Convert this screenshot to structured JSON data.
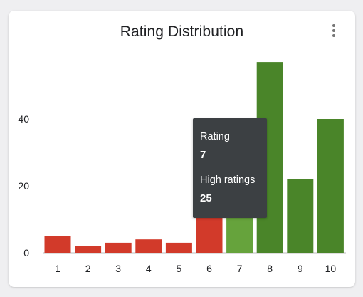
{
  "chart_data": {
    "type": "bar",
    "title": "Rating Distribution",
    "categories": [
      "1",
      "2",
      "3",
      "4",
      "5",
      "6",
      "7",
      "8",
      "9",
      "10"
    ],
    "values": [
      5,
      2,
      3,
      4,
      3,
      12,
      25,
      57,
      22,
      40
    ],
    "bar_colors": [
      "#d23a2a",
      "#d23a2a",
      "#d23a2a",
      "#d23a2a",
      "#d23a2a",
      "#d23a2a",
      "#66a33c",
      "#4a8529",
      "#4a8529",
      "#4a8529"
    ],
    "y_ticks": [
      "0",
      "20",
      "40"
    ],
    "ylim": [
      0,
      60
    ],
    "xlabel": "",
    "ylabel": "",
    "grid": false,
    "legend": "none"
  },
  "tooltip": {
    "category_label": "Rating",
    "category_value": "7",
    "series_label": "High ratings",
    "series_value": "25"
  },
  "menu": {
    "icon": "more-vert-icon"
  }
}
